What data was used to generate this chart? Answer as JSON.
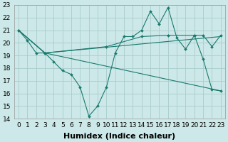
{
  "xlabel": "Humidex (Indice chaleur)",
  "xlim": [
    -0.5,
    23.5
  ],
  "ylim": [
    14,
    23
  ],
  "yticks": [
    14,
    15,
    16,
    17,
    18,
    19,
    20,
    21,
    22,
    23
  ],
  "xticks": [
    0,
    1,
    2,
    3,
    4,
    5,
    6,
    7,
    8,
    9,
    10,
    11,
    12,
    13,
    14,
    15,
    16,
    17,
    18,
    19,
    20,
    21,
    22,
    23
  ],
  "background_color": "#cce8e8",
  "grid_color": "#aacccc",
  "line_color": "#1a7a6e",
  "series": [
    {
      "x": [
        0,
        1,
        2,
        3,
        4,
        5,
        6,
        7,
        8,
        9,
        10,
        11,
        12,
        13,
        14,
        15,
        16,
        17,
        18,
        19,
        20,
        21,
        22,
        23
      ],
      "y": [
        21.0,
        20.2,
        19.2,
        19.2,
        18.5,
        17.8,
        17.5,
        16.5,
        14.2,
        15.0,
        16.5,
        19.2,
        20.5,
        20.5,
        21.0,
        22.5,
        21.5,
        22.8,
        20.4,
        19.5,
        20.6,
        18.7,
        16.3,
        16.2
      ],
      "has_markers": true
    },
    {
      "x": [
        0,
        3,
        10,
        14,
        17,
        20,
        21,
        22,
        23
      ],
      "y": [
        21.0,
        19.2,
        19.7,
        20.5,
        20.6,
        20.6,
        20.6,
        19.7,
        20.6
      ],
      "has_markers": true
    },
    {
      "x": [
        0,
        3,
        23
      ],
      "y": [
        21.0,
        19.2,
        20.5
      ],
      "has_markers": false
    },
    {
      "x": [
        0,
        3,
        23
      ],
      "y": [
        21.0,
        19.2,
        16.2
      ],
      "has_markers": false
    }
  ],
  "fontsize_xlabel": 8,
  "fontsize_ticks": 6.5
}
